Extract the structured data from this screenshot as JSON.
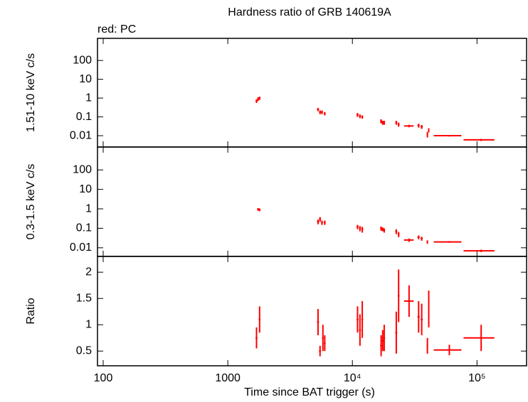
{
  "chart_data": [
    {
      "type": "scatter",
      "title": "Hardness ratio of GRB 140619A",
      "annotation": "red: PC",
      "ylabel": "1.51-10 keV c/s",
      "ylog": true,
      "color": "#ff0000",
      "ylim": [
        0.0025,
        1500
      ],
      "yticks": [
        0.01,
        0.1,
        1,
        10,
        100
      ],
      "x": [
        1700,
        1750,
        1800,
        5300,
        5500,
        5700,
        6000,
        11000,
        11500,
        12000,
        17000,
        17500,
        18000,
        22500,
        23500,
        28500,
        34000,
        36000,
        40000,
        41000,
        60000,
        108000
      ],
      "x_err": [
        30,
        30,
        30,
        100,
        100,
        100,
        100,
        200,
        200,
        200,
        300,
        300,
        300,
        400,
        400,
        2500,
        700,
        700,
        500,
        500,
        15000,
        30000
      ],
      "values": [
        0.7,
        0.9,
        1.0,
        0.25,
        0.18,
        0.18,
        0.15,
        0.13,
        0.11,
        0.1,
        0.06,
        0.05,
        0.05,
        0.05,
        0.04,
        0.033,
        0.035,
        0.03,
        0.012,
        0.02,
        0.01,
        0.006
      ],
      "errors": [
        0.15,
        0.2,
        0.2,
        0.05,
        0.04,
        0.04,
        0.03,
        0.03,
        0.025,
        0.02,
        0.015,
        0.012,
        0.012,
        0.012,
        0.01,
        0.005,
        0.008,
        0.007,
        0.004,
        0.005,
        0.001,
        0.0008
      ]
    },
    {
      "type": "scatter",
      "ylabel": "0.3-1.5 keV c/s",
      "ylog": true,
      "color": "#ff0000",
      "ylim": [
        0.0036,
        1500
      ],
      "yticks": [
        0.01,
        0.1,
        1,
        10,
        100
      ],
      "x": [
        1750,
        1800,
        5300,
        5500,
        5700,
        6000,
        11000,
        11500,
        12000,
        17000,
        17500,
        18000,
        22500,
        23500,
        28500,
        34000,
        36000,
        40000,
        60000,
        108000
      ],
      "x_err": [
        30,
        30,
        100,
        100,
        100,
        100,
        200,
        200,
        200,
        300,
        300,
        300,
        400,
        400,
        2500,
        700,
        700,
        500,
        15000,
        30000
      ],
      "values": [
        0.95,
        0.9,
        0.22,
        0.3,
        0.2,
        0.2,
        0.12,
        0.1,
        0.09,
        0.1,
        0.09,
        0.08,
        0.07,
        0.05,
        0.025,
        0.035,
        0.03,
        0.02,
        0.02,
        0.007
      ],
      "errors": [
        0.15,
        0.15,
        0.06,
        0.08,
        0.05,
        0.05,
        0.03,
        0.03,
        0.03,
        0.025,
        0.02,
        0.02,
        0.02,
        0.015,
        0.005,
        0.008,
        0.007,
        0.004,
        0.002,
        0.001
      ]
    },
    {
      "type": "scatter",
      "ylabel": "Ratio",
      "ylog": false,
      "color": "#ff0000",
      "xlabel": "Time since BAT trigger (s)",
      "xlog": true,
      "xlim": [
        90,
        250000
      ],
      "xticks": [
        100,
        1000,
        {
          "value": 10000,
          "label": "10⁴"
        },
        {
          "value": 100000,
          "label": "10⁵"
        }
      ],
      "ylim": [
        0.22,
        2.3
      ],
      "yticks": [
        0.5,
        1,
        1.5,
        2
      ],
      "x": [
        1700,
        1800,
        5300,
        5500,
        5800,
        6000,
        11000,
        11500,
        12000,
        17000,
        17500,
        18000,
        22500,
        23500,
        28500,
        34000,
        36000,
        40000,
        41000,
        60000,
        108000
      ],
      "x_err": [
        30,
        30,
        100,
        100,
        100,
        100,
        200,
        200,
        200,
        300,
        300,
        300,
        400,
        400,
        2500,
        700,
        700,
        500,
        500,
        15000,
        30000
      ],
      "values": [
        0.75,
        1.1,
        1.05,
        0.5,
        0.75,
        0.65,
        1.1,
        0.9,
        1.1,
        0.6,
        0.7,
        0.75,
        0.85,
        1.55,
        1.45,
        1.15,
        1.1,
        0.6,
        1.3,
        0.52,
        0.75
      ],
      "errors": [
        0.2,
        0.25,
        0.25,
        0.1,
        0.25,
        0.15,
        0.25,
        0.3,
        0.35,
        0.2,
        0.2,
        0.25,
        0.4,
        0.5,
        0.3,
        0.3,
        0.3,
        0.15,
        0.35,
        0.1,
        0.25
      ]
    }
  ]
}
